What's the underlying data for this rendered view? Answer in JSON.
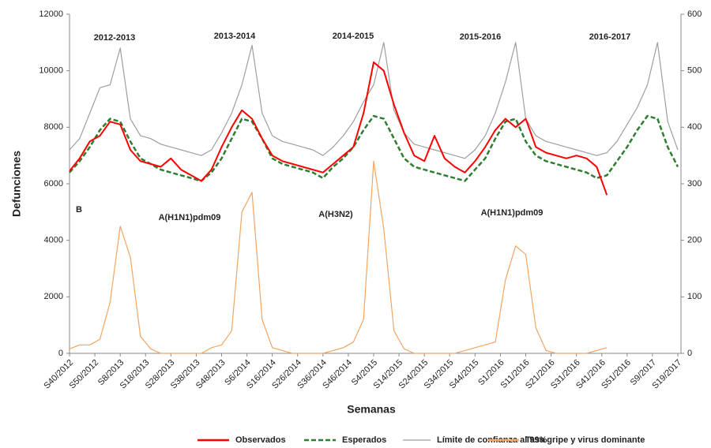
{
  "chart_data": {
    "type": "line",
    "x_label": "Semanas",
    "y_label": "Defunciones",
    "xlim": [
      0,
      240
    ],
    "xticks": [
      {
        "value": 0,
        "label": "S40/2012"
      },
      {
        "value": 10,
        "label": "S50/2012"
      },
      {
        "value": 20,
        "label": "S8/2013"
      },
      {
        "value": 30,
        "label": "S18/2013"
      },
      {
        "value": 40,
        "label": "S28/2013"
      },
      {
        "value": 50,
        "label": "S38/2013"
      },
      {
        "value": 60,
        "label": "S48/2013"
      },
      {
        "value": 70,
        "label": "S6/2014"
      },
      {
        "value": 80,
        "label": "S16/2014"
      },
      {
        "value": 90,
        "label": "S26/2014"
      },
      {
        "value": 100,
        "label": "S36/2014"
      },
      {
        "value": 110,
        "label": "S46/2014"
      },
      {
        "value": 120,
        "label": "S4/2015"
      },
      {
        "value": 130,
        "label": "S14/2015"
      },
      {
        "value": 140,
        "label": "S24/2015"
      },
      {
        "value": 150,
        "label": "S34/2015"
      },
      {
        "value": 160,
        "label": "S44/2015"
      },
      {
        "value": 170,
        "label": "S1/2016"
      },
      {
        "value": 180,
        "label": "S11/2016"
      },
      {
        "value": 190,
        "label": "S21/2016"
      },
      {
        "value": 200,
        "label": "S31/2016"
      },
      {
        "value": 210,
        "label": "S41/2016"
      },
      {
        "value": 220,
        "label": "S51/2016"
      },
      {
        "value": 230,
        "label": "S9/2017"
      },
      {
        "value": 240,
        "label": "S19/2017"
      }
    ],
    "ylim": [
      0,
      12000
    ],
    "yticks": [
      0,
      2000,
      4000,
      6000,
      8000,
      10000,
      12000
    ],
    "y2lim": [
      0,
      600
    ],
    "y2ticks": [
      0,
      100,
      200,
      300,
      400,
      500,
      600
    ],
    "annotations": [
      "2012-2013",
      "2013-2014",
      "2014-2015",
      "2015-2016",
      "2016-2017",
      "B",
      "A(H1N1)pdm09",
      "A(H3N2)",
      "A(H1N1)pdm09"
    ],
    "x": [
      0,
      4,
      8,
      12,
      16,
      20,
      24,
      28,
      32,
      36,
      40,
      44,
      48,
      52,
      56,
      60,
      64,
      68,
      72,
      76,
      80,
      84,
      88,
      92,
      96,
      100,
      104,
      108,
      112,
      116,
      120,
      124,
      128,
      132,
      136,
      140,
      144,
      148,
      152,
      156,
      160,
      164,
      168,
      172,
      176,
      180,
      184,
      188,
      192,
      196,
      200,
      204,
      208,
      212,
      216,
      220,
      224,
      228,
      232,
      236,
      240
    ],
    "series": [
      {
        "name": "Observados",
        "color": "#ff0000",
        "dash": false,
        "values": [
          6450,
          6900,
          7500,
          7700,
          8200,
          8100,
          7200,
          6800,
          6700,
          6600,
          6900,
          6500,
          6300,
          6100,
          6500,
          7300,
          8000,
          8600,
          8300,
          7600,
          7000,
          6800,
          6700,
          6600,
          6500,
          6400,
          6700,
          7000,
          7300,
          8500,
          10300,
          10000,
          8800,
          7800,
          7000,
          6800,
          7700,
          6900,
          6600,
          6400,
          6800,
          7300,
          7900,
          8300,
          8000,
          8300,
          7300,
          7100,
          7000,
          6900,
          7000,
          6900,
          6600,
          5600,
          null,
          null,
          null,
          null,
          null,
          null,
          null
        ]
      },
      {
        "name": "Esperados",
        "color": "#2e7d32",
        "dash": true,
        "values": [
          6400,
          6800,
          7300,
          7900,
          8300,
          8200,
          7500,
          6900,
          6700,
          6500,
          6400,
          6300,
          6200,
          6100,
          6400,
          6900,
          7600,
          8300,
          8200,
          7600,
          6900,
          6700,
          6600,
          6500,
          6400,
          6200,
          6600,
          6900,
          7300,
          7900,
          8400,
          8300,
          7600,
          6900,
          6600,
          6500,
          6400,
          6300,
          6200,
          6100,
          6500,
          6900,
          7600,
          8200,
          8300,
          7500,
          7000,
          6800,
          6700,
          6600,
          6500,
          6400,
          6200,
          6300,
          6800,
          7300,
          7900,
          8400,
          8300,
          7300,
          6600
        ]
      },
      {
        "name": "Límite de confianza al 99%",
        "color": "#9e9e9e",
        "dash": false,
        "values": [
          7200,
          7600,
          8500,
          9400,
          9500,
          10800,
          8300,
          7700,
          7600,
          7400,
          7300,
          7200,
          7100,
          7000,
          7200,
          7800,
          8500,
          9500,
          10900,
          8500,
          7700,
          7500,
          7400,
          7300,
          7200,
          7000,
          7300,
          7700,
          8200,
          8900,
          9500,
          11000,
          8600,
          7800,
          7400,
          7300,
          7200,
          7100,
          7000,
          6900,
          7200,
          7700,
          8500,
          9600,
          11000,
          8300,
          7700,
          7500,
          7400,
          7300,
          7200,
          7100,
          7000,
          7100,
          7500,
          8100,
          8700,
          9500,
          11000,
          8200,
          7200
        ]
      },
      {
        "name": "Tasa gripe y virus dominante",
        "color": "#f4a460",
        "dash": false,
        "axis": "y2",
        "values": [
          8,
          15,
          15,
          25,
          90,
          225,
          170,
          30,
          8,
          0,
          0,
          0,
          0,
          0,
          10,
          15,
          40,
          250,
          285,
          60,
          10,
          5,
          0,
          0,
          0,
          0,
          5,
          10,
          20,
          60,
          340,
          220,
          40,
          8,
          0,
          0,
          0,
          0,
          0,
          5,
          10,
          15,
          20,
          130,
          190,
          175,
          45,
          5,
          0,
          0,
          0,
          0,
          5,
          10,
          null,
          null,
          null,
          null,
          null,
          null,
          null
        ]
      }
    ]
  }
}
